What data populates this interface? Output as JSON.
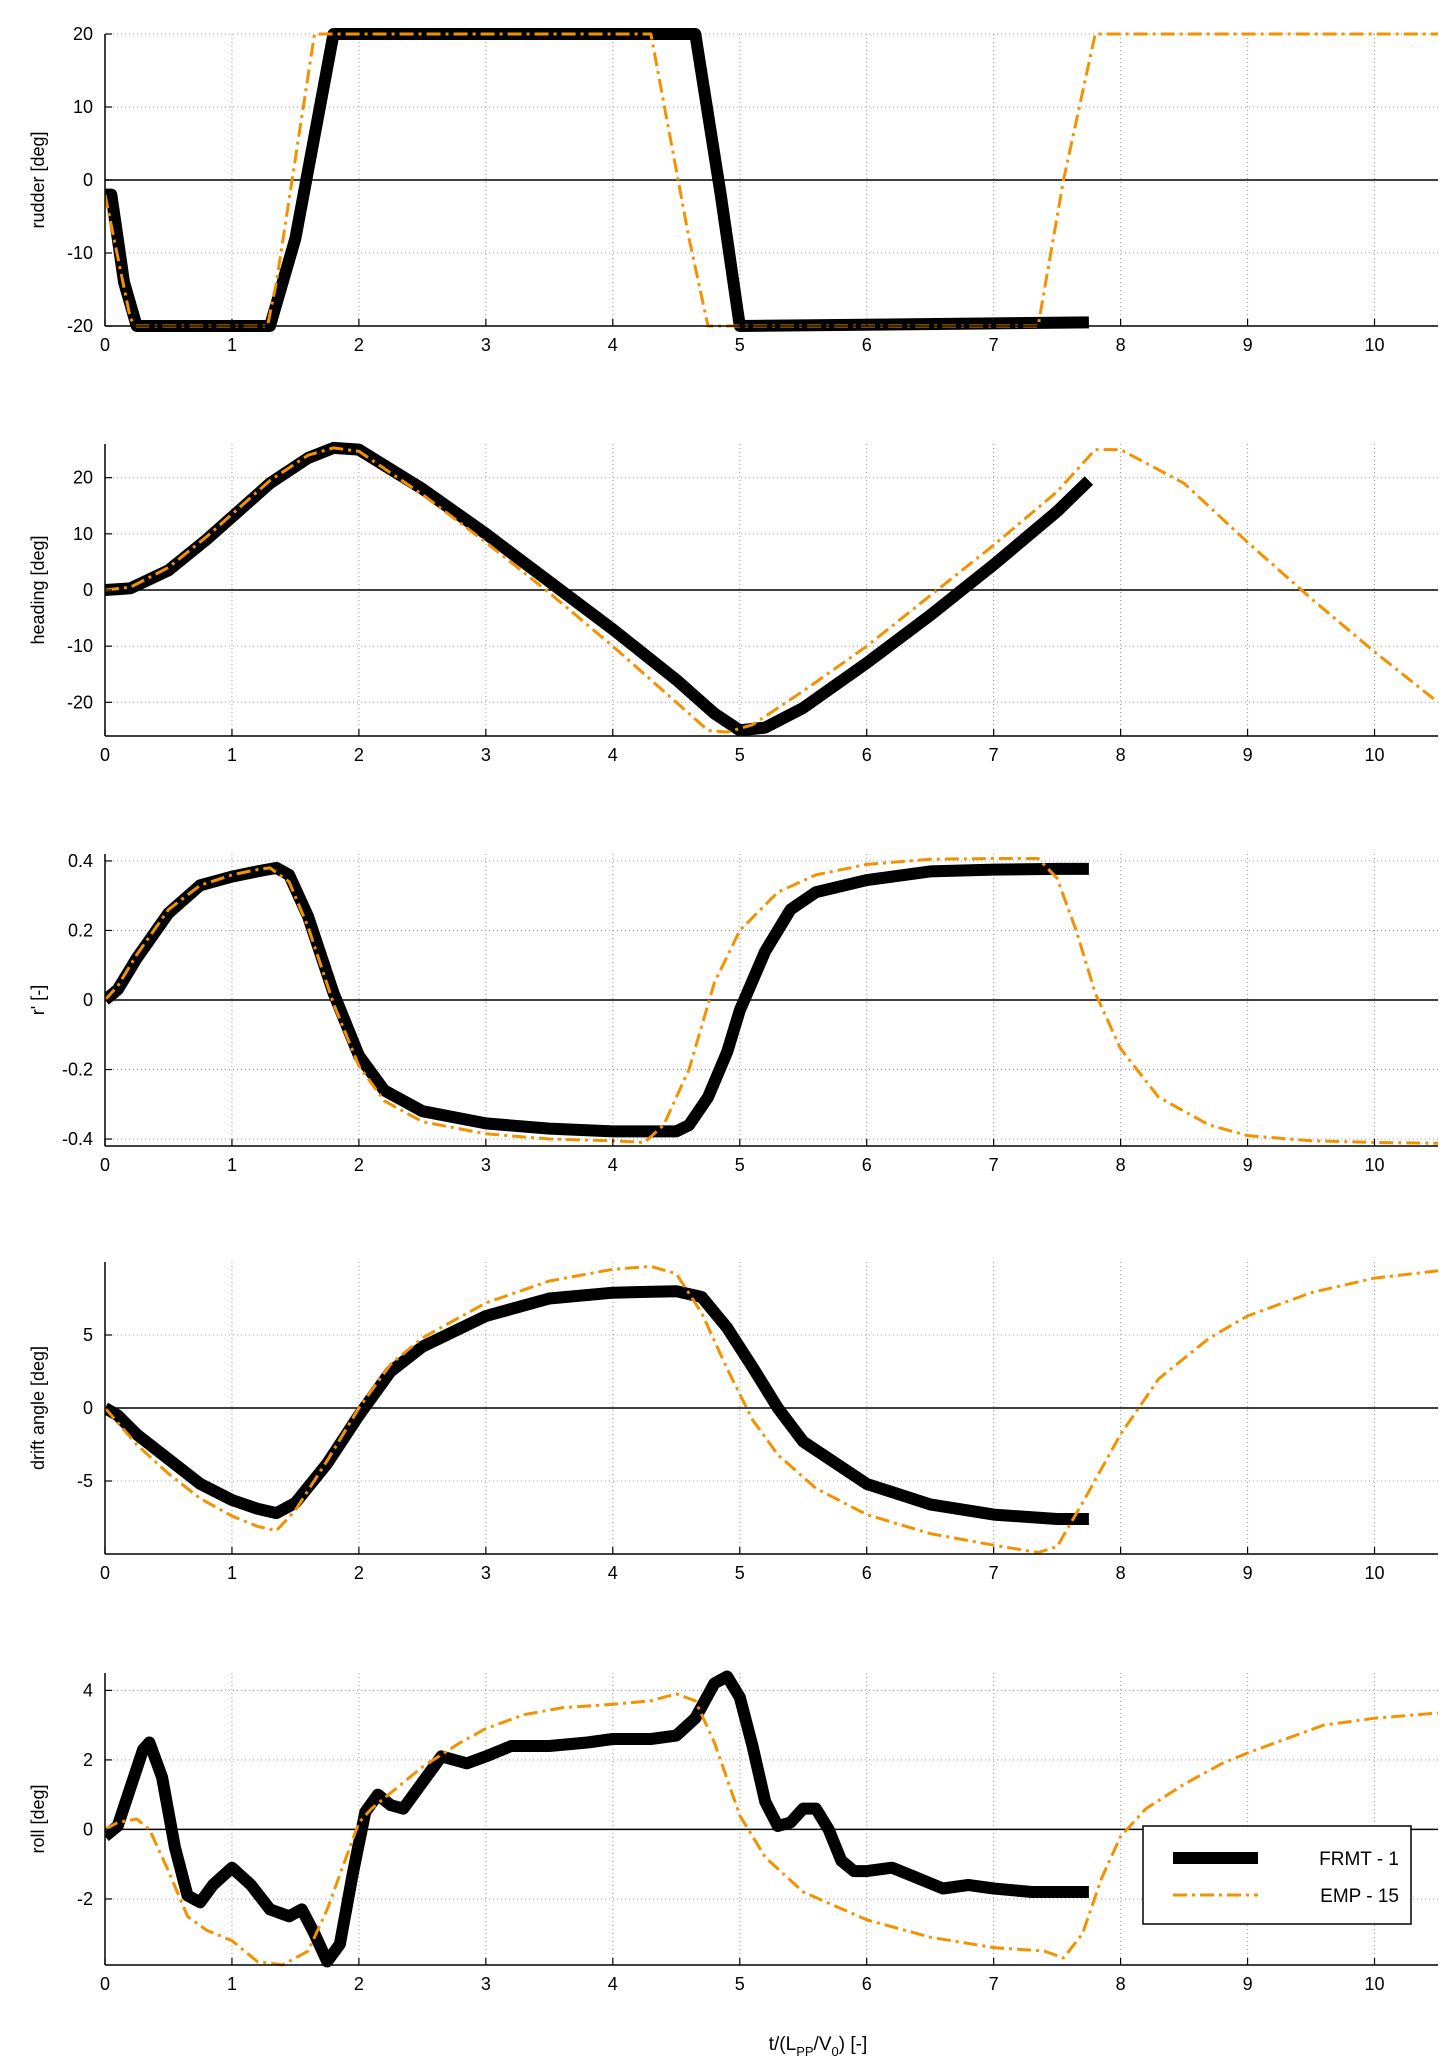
{
  "xlabel": {
    "main": "t/(L",
    "sub1": "PP",
    "mid": "/V",
    "sub2": "0",
    "tail": ") [-]"
  },
  "legend": {
    "placement": "bottom-right of last panel",
    "entries": [
      {
        "label": "FRMT - 1",
        "color": "#000000",
        "style": "thick-solid"
      },
      {
        "label": "EMP - 15",
        "color": "#f39200",
        "style": "dash-dot"
      }
    ]
  },
  "chart_data": [
    {
      "type": "line",
      "id": "rudder",
      "ylabel": "rudder [deg]",
      "xlim": [
        0,
        10.5
      ],
      "ylim": [
        -20,
        20
      ],
      "xticks": [
        0,
        1,
        2,
        3,
        4,
        5,
        6,
        7,
        8,
        9,
        10
      ],
      "yticks": [
        -20,
        -10,
        0,
        10,
        20
      ],
      "ytick_labels": [
        "-20",
        "-10",
        "0",
        "10",
        "20"
      ],
      "series": [
        {
          "name": "FRMT - 1",
          "x": [
            0,
            0.05,
            0.1,
            0.15,
            0.25,
            1.3,
            1.5,
            1.8,
            4.55,
            4.65,
            4.85,
            5.0,
            7.75
          ],
          "y": [
            -2,
            -2,
            -8,
            -14,
            -20,
            -20,
            -8,
            20,
            20,
            20,
            -2,
            -20,
            -19.5
          ]
        },
        {
          "name": "EMP - 15",
          "x": [
            0,
            0.2,
            0.25,
            1.28,
            1.35,
            1.65,
            4.3,
            4.6,
            4.75,
            7.35,
            7.55,
            7.8,
            10.5
          ],
          "y": [
            -2,
            -19,
            -20,
            -20,
            -14,
            20,
            20,
            -8,
            -20,
            -20,
            0,
            20,
            20
          ]
        }
      ]
    },
    {
      "type": "line",
      "id": "heading",
      "ylabel": "heading [deg]",
      "xlim": [
        0,
        10.5
      ],
      "ylim": [
        -26,
        26
      ],
      "xticks": [
        0,
        1,
        2,
        3,
        4,
        5,
        6,
        7,
        8,
        9,
        10
      ],
      "yticks": [
        -20,
        -10,
        0,
        10,
        20
      ],
      "ytick_labels": [
        "-20",
        "-10",
        "0",
        "10",
        "20"
      ],
      "series": [
        {
          "name": "FRMT - 1",
          "x": [
            0,
            0.2,
            0.5,
            0.8,
            1.0,
            1.3,
            1.6,
            1.8,
            2.0,
            2.5,
            3.0,
            3.5,
            4.0,
            4.5,
            4.8,
            5.0,
            5.2,
            5.5,
            6.0,
            6.5,
            7.0,
            7.5,
            7.75
          ],
          "y": [
            0,
            0.3,
            3.5,
            9,
            13,
            19,
            23.5,
            25.3,
            25,
            18,
            10,
            1.5,
            -7,
            -16,
            -22,
            -25,
            -24.5,
            -21,
            -13,
            -4.5,
            4.5,
            14,
            19.5
          ]
        },
        {
          "name": "EMP - 15",
          "x": [
            0,
            0.2,
            0.5,
            0.8,
            1.0,
            1.3,
            1.6,
            1.8,
            2.0,
            2.5,
            3.0,
            3.5,
            4.0,
            4.5,
            4.75,
            4.9,
            5.1,
            5.5,
            6.0,
            6.5,
            7.0,
            7.5,
            7.8,
            8.0,
            8.5,
            9.0,
            9.5,
            10.0,
            10.5
          ],
          "y": [
            0,
            0.5,
            4,
            9.5,
            13.5,
            19.5,
            24,
            25.3,
            24.7,
            17,
            8.5,
            -0.5,
            -10,
            -20,
            -25,
            -25.3,
            -24,
            -18,
            -10,
            -1,
            8,
            17.5,
            25,
            25,
            19,
            8.5,
            -1.5,
            -11,
            -20
          ]
        }
      ]
    },
    {
      "type": "line",
      "id": "yaw-rate",
      "ylabel": "r' [-]",
      "xlim": [
        0,
        10.5
      ],
      "ylim": [
        -0.42,
        0.42
      ],
      "xticks": [
        0,
        1,
        2,
        3,
        4,
        5,
        6,
        7,
        8,
        9,
        10
      ],
      "yticks": [
        -0.4,
        -0.2,
        0,
        0.2,
        0.4
      ],
      "ytick_labels": [
        "-0.4",
        "-0.2",
        "0",
        "0.2",
        "0.4"
      ],
      "series": [
        {
          "name": "FRMT - 1",
          "x": [
            0,
            0.1,
            0.25,
            0.5,
            0.75,
            1.0,
            1.2,
            1.35,
            1.45,
            1.6,
            1.8,
            2.0,
            2.2,
            2.5,
            3.0,
            3.5,
            4.0,
            4.5,
            4.6,
            4.75,
            4.9,
            5.0,
            5.2,
            5.4,
            5.6,
            6.0,
            6.5,
            7.0,
            7.5,
            7.75
          ],
          "y": [
            0,
            0.03,
            0.12,
            0.25,
            0.33,
            0.355,
            0.37,
            0.38,
            0.36,
            0.24,
            0.02,
            -0.16,
            -0.26,
            -0.32,
            -0.355,
            -0.37,
            -0.378,
            -0.378,
            -0.36,
            -0.28,
            -0.15,
            -0.03,
            0.14,
            0.26,
            0.31,
            0.345,
            0.37,
            0.375,
            0.377,
            0.377
          ]
        },
        {
          "name": "EMP - 15",
          "x": [
            0,
            0.1,
            0.25,
            0.5,
            0.75,
            1.0,
            1.2,
            1.3,
            1.45,
            1.6,
            1.8,
            2.0,
            2.2,
            2.5,
            3.0,
            3.5,
            4.0,
            4.25,
            4.4,
            4.6,
            4.8,
            5.0,
            5.3,
            5.6,
            6.0,
            6.5,
            7.0,
            7.35,
            7.5,
            7.65,
            7.8,
            8.0,
            8.3,
            8.7,
            9.0,
            9.5,
            10.0,
            10.5
          ],
          "y": [
            0,
            0.04,
            0.13,
            0.26,
            0.33,
            0.36,
            0.375,
            0.38,
            0.34,
            0.21,
            -0.01,
            -0.19,
            -0.29,
            -0.35,
            -0.385,
            -0.4,
            -0.405,
            -0.41,
            -0.36,
            -0.2,
            0.05,
            0.2,
            0.31,
            0.36,
            0.39,
            0.405,
            0.407,
            0.407,
            0.35,
            0.2,
            0.02,
            -0.14,
            -0.28,
            -0.36,
            -0.39,
            -0.405,
            -0.41,
            -0.412
          ]
        }
      ]
    },
    {
      "type": "line",
      "id": "drift",
      "ylabel": "drift angle [deg]",
      "xlim": [
        0,
        10.5
      ],
      "ylim": [
        -10,
        10
      ],
      "xticks": [
        0,
        1,
        2,
        3,
        4,
        5,
        6,
        7,
        8,
        9,
        10
      ],
      "yticks": [
        -5,
        0,
        5
      ],
      "ytick_labels": [
        "-5",
        "0",
        "5"
      ],
      "series": [
        {
          "name": "FRMT - 1",
          "x": [
            0,
            0.1,
            0.25,
            0.5,
            0.75,
            1.0,
            1.2,
            1.35,
            1.5,
            1.75,
            2.0,
            2.25,
            2.5,
            3.0,
            3.5,
            4.0,
            4.5,
            4.7,
            4.9,
            5.1,
            5.3,
            5.5,
            6.0,
            6.5,
            7.0,
            7.5,
            7.75
          ],
          "y": [
            0,
            -0.5,
            -1.8,
            -3.5,
            -5.2,
            -6.3,
            -6.9,
            -7.2,
            -6.5,
            -3.8,
            -0.5,
            2.5,
            4.2,
            6.3,
            7.5,
            7.9,
            8.0,
            7.6,
            5.5,
            2.8,
            0,
            -2.3,
            -5.2,
            -6.6,
            -7.3,
            -7.6,
            -7.6
          ]
        },
        {
          "name": "EMP - 15",
          "x": [
            0,
            0.25,
            0.5,
            0.75,
            1.0,
            1.2,
            1.35,
            1.5,
            1.75,
            2.0,
            2.25,
            2.5,
            3.0,
            3.5,
            4.0,
            4.3,
            4.5,
            4.7,
            4.9,
            5.1,
            5.3,
            5.6,
            6.0,
            6.5,
            7.0,
            7.35,
            7.5,
            7.7,
            8.0,
            8.3,
            8.7,
            9.0,
            9.5,
            10.0,
            10.5
          ],
          "y": [
            0,
            -2.5,
            -4.5,
            -6.2,
            -7.4,
            -8.1,
            -8.4,
            -7,
            -3.6,
            0,
            3,
            4.8,
            7.2,
            8.7,
            9.5,
            9.7,
            9.2,
            6.5,
            2.7,
            -0.8,
            -3.2,
            -5.5,
            -7.3,
            -8.6,
            -9.4,
            -9.9,
            -9.5,
            -6.5,
            -1.8,
            2,
            4.8,
            6.3,
            7.9,
            8.9,
            9.4
          ]
        }
      ]
    },
    {
      "type": "line",
      "id": "roll",
      "ylabel": "roll [deg]",
      "xlim": [
        0,
        10.5
      ],
      "ylim": [
        -3.9,
        4.5
      ],
      "xticks": [
        0,
        1,
        2,
        3,
        4,
        5,
        6,
        7,
        8,
        9,
        10
      ],
      "yticks": [
        -2,
        0,
        2,
        4
      ],
      "ytick_labels": [
        "-2",
        "0",
        "2",
        "4"
      ],
      "series": [
        {
          "name": "FRMT - 1",
          "x": [
            0,
            0.1,
            0.2,
            0.3,
            0.35,
            0.45,
            0.55,
            0.65,
            0.75,
            0.85,
            1.0,
            1.15,
            1.3,
            1.45,
            1.55,
            1.65,
            1.75,
            1.85,
            1.95,
            2.05,
            2.15,
            2.25,
            2.35,
            2.45,
            2.55,
            2.65,
            2.75,
            2.85,
            3.0,
            3.2,
            3.5,
            3.8,
            4.0,
            4.3,
            4.5,
            4.65,
            4.8,
            4.9,
            5.0,
            5.1,
            5.2,
            5.3,
            5.4,
            5.5,
            5.6,
            5.7,
            5.8,
            5.9,
            6.0,
            6.2,
            6.4,
            6.6,
            6.8,
            7.0,
            7.3,
            7.6,
            7.75
          ],
          "y": [
            -0.2,
            0.1,
            1.2,
            2.3,
            2.5,
            1.5,
            -0.5,
            -1.9,
            -2.1,
            -1.6,
            -1.1,
            -1.6,
            -2.3,
            -2.5,
            -2.3,
            -3,
            -3.8,
            -3.3,
            -1.3,
            0.5,
            1,
            0.7,
            0.6,
            1.1,
            1.6,
            2.1,
            2,
            1.9,
            2.1,
            2.4,
            2.4,
            2.5,
            2.6,
            2.6,
            2.7,
            3.2,
            4.2,
            4.4,
            3.8,
            2.4,
            0.8,
            0.1,
            0.2,
            0.6,
            0.6,
            0,
            -0.9,
            -1.2,
            -1.2,
            -1.1,
            -1.4,
            -1.7,
            -1.6,
            -1.7,
            -1.8,
            -1.8,
            -1.8
          ]
        },
        {
          "name": "EMP - 15",
          "x": [
            0,
            0.1,
            0.25,
            0.35,
            0.5,
            0.65,
            0.8,
            1.0,
            1.2,
            1.4,
            1.6,
            1.75,
            1.9,
            2.0,
            2.1,
            2.3,
            2.5,
            2.8,
            3.0,
            3.3,
            3.6,
            4.0,
            4.3,
            4.5,
            4.65,
            4.8,
            5.0,
            5.2,
            5.5,
            6.0,
            6.5,
            7.0,
            7.4,
            7.55,
            7.7,
            7.85,
            8.0,
            8.2,
            8.5,
            8.8,
            9.0,
            9.3,
            9.6,
            10.0,
            10.5
          ],
          "y": [
            0,
            0.2,
            0.3,
            0,
            -1.2,
            -2.5,
            -2.9,
            -3.2,
            -3.8,
            -3.9,
            -3.5,
            -2.3,
            -0.8,
            0.2,
            0.6,
            1.2,
            1.8,
            2.5,
            2.9,
            3.3,
            3.5,
            3.6,
            3.7,
            3.9,
            3.7,
            2.5,
            0.4,
            -0.8,
            -1.8,
            -2.6,
            -3.1,
            -3.4,
            -3.5,
            -3.7,
            -3,
            -1.4,
            -0.2,
            0.6,
            1.3,
            1.9,
            2.2,
            2.6,
            3,
            3.2,
            3.35
          ]
        }
      ]
    }
  ]
}
